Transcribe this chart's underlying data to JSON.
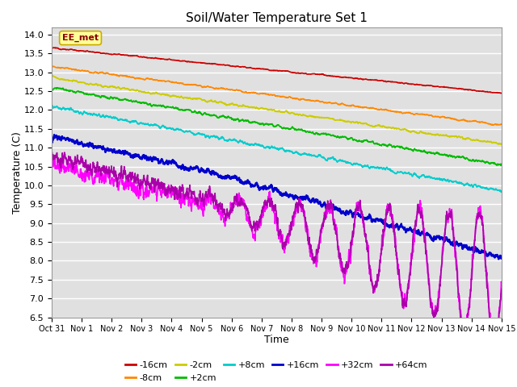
{
  "title": "Soil/Water Temperature Set 1",
  "xlabel": "Time",
  "ylabel": "Temperature (C)",
  "ylim": [
    6.5,
    14.2
  ],
  "xlim": [
    0,
    15
  ],
  "xtick_labels": [
    "Oct 31",
    "Nov 1",
    "Nov 2",
    "Nov 3",
    "Nov 4",
    "Nov 5",
    "Nov 6",
    "Nov 7",
    "Nov 8",
    "Nov 9",
    "Nov 10",
    "Nov 11",
    "Nov 12",
    "Nov 13",
    "Nov 14",
    "Nov 15"
  ],
  "ytick_values": [
    6.5,
    7.0,
    7.5,
    8.0,
    8.5,
    9.0,
    9.5,
    10.0,
    10.5,
    11.0,
    11.5,
    12.0,
    12.5,
    13.0,
    13.5,
    14.0
  ],
  "series": [
    {
      "label": "-16cm",
      "color": "#cc0000",
      "start": 13.65,
      "end": 12.45,
      "noise": 0.04,
      "smooth": 0.92
    },
    {
      "label": "-8cm",
      "color": "#ff8800",
      "start": 13.15,
      "end": 11.6,
      "noise": 0.05,
      "smooth": 0.9
    },
    {
      "label": "-2cm",
      "color": "#cccc00",
      "start": 12.85,
      "end": 11.1,
      "noise": 0.06,
      "smooth": 0.88
    },
    {
      "label": "+2cm",
      "color": "#00bb00",
      "start": 12.6,
      "end": 10.55,
      "noise": 0.07,
      "smooth": 0.87
    },
    {
      "label": "+8cm",
      "color": "#00cccc",
      "start": 12.1,
      "end": 9.85,
      "noise": 0.08,
      "smooth": 0.86
    },
    {
      "label": "+16cm",
      "color": "#0000cc",
      "start": 11.3,
      "end": 8.6,
      "noise": 0.12,
      "smooth": 0.82
    },
    {
      "label": "+32cm",
      "color": "#ff00ff",
      "start": 10.55,
      "end": 7.5,
      "noise": 0.25,
      "smooth": 0.7
    },
    {
      "label": "+64cm",
      "color": "#aa00aa",
      "start": 10.8,
      "end": 7.4,
      "noise": 0.22,
      "smooth": 0.72
    }
  ],
  "annotation_text": "EE_met",
  "bg_color": "#e0e0e0",
  "grid_color": "#ffffff",
  "n_points": 2160
}
